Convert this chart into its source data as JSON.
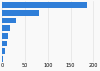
{
  "values": [
    186000,
    80000,
    30000,
    18000,
    13000,
    10000,
    7000,
    3000
  ],
  "bar_color": "#2f7ed8",
  "background_color": "#f9f9f9",
  "grid_color": "#dddddd",
  "xlim": [
    0,
    210000
  ],
  "bar_height": 0.75,
  "xtick_fontsize": 3.5,
  "tick_vals": [
    0,
    50000,
    100000,
    150000,
    200000
  ]
}
